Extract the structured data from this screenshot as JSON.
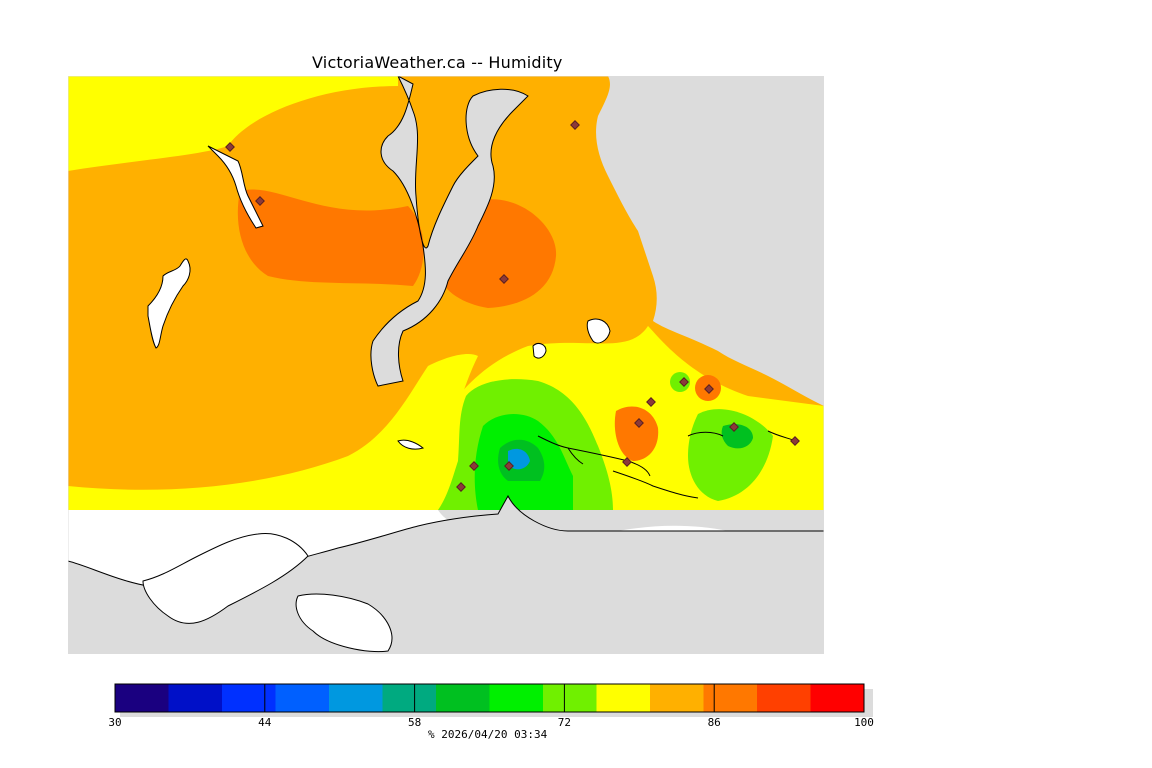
{
  "title": "VictoriaWeather.ca -- Humidity",
  "colors": {
    "land_outside": "#dcdcdc",
    "water": "#ffffff",
    "coast": "#000000",
    "station_marker": "#8b3a3a"
  },
  "legend": {
    "min": 30,
    "max": 100,
    "ticks": [
      "30",
      "44",
      "58",
      "72",
      "86",
      "100"
    ],
    "bands": [
      "#1a0080",
      "#0010c8",
      "#0030ff",
      "#0060ff",
      "#0098e0",
      "#00aa80",
      "#00c020",
      "#00f000",
      "#70f000",
      "#ffff00",
      "#ffb000",
      "#ff7800",
      "#ff4000",
      "#ff0000"
    ],
    "footer": "%  2026/04/20 03:34"
  },
  "map_data": {
    "variable": "Humidity",
    "units": "%",
    "stations": 14
  }
}
